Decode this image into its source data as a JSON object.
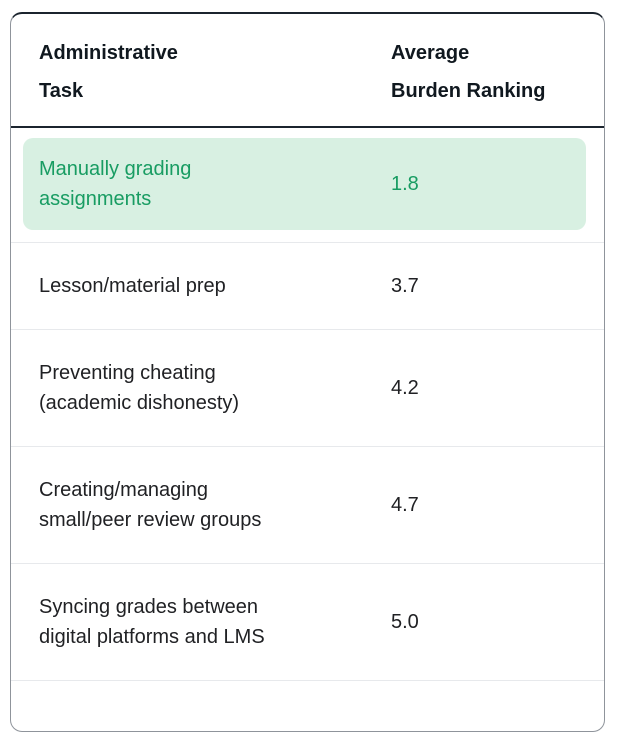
{
  "table": {
    "header": {
      "col1": "Administrative\nTask",
      "col2": "Average\nBurden Ranking"
    },
    "rows": [
      {
        "task": "Manually grading assignments",
        "value": "1.8",
        "highlighted": true
      },
      {
        "task": "Lesson/material prep",
        "value": "3.7",
        "highlighted": false
      },
      {
        "task": "Preventing cheating (academic dishonesty)",
        "value": "4.2",
        "highlighted": false
      },
      {
        "task": "Creating/managing small/peer review groups",
        "value": "4.7",
        "highlighted": false
      },
      {
        "task": "Syncing grades between digital platforms and LMS",
        "value": "5.0",
        "highlighted": false
      }
    ]
  },
  "colors": {
    "highlight_background": "#d8f0e2",
    "highlight_text": "#189c62",
    "header_text": "#10181f",
    "body_text": "#202124",
    "card_side_border": "#8f949b",
    "card_top_border": "#1b242e",
    "header_separator": "#1b242e",
    "row_divider": "#e7e9ec"
  }
}
